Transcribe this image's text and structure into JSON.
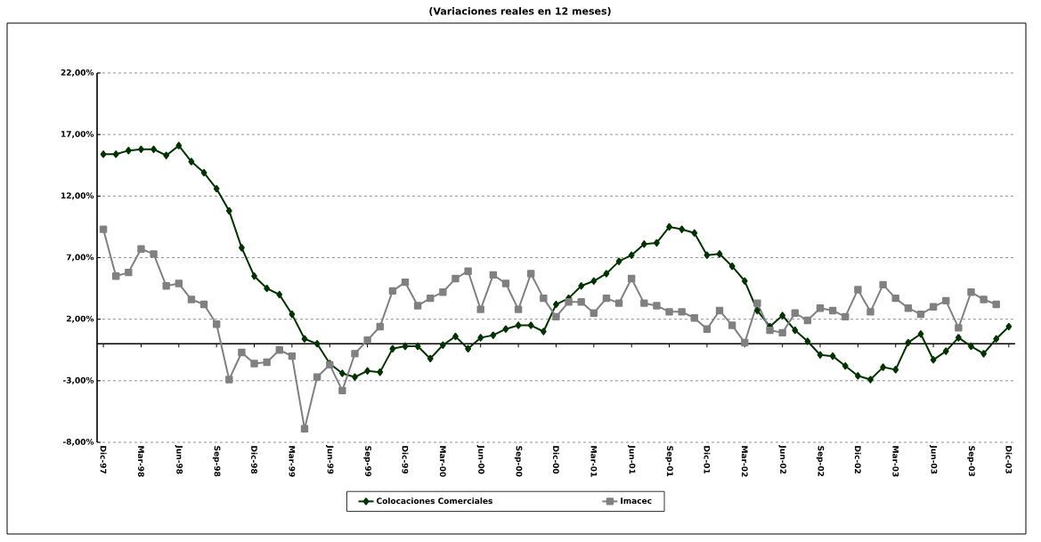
{
  "chart_data": {
    "type": "line",
    "title": "(Variaciones reales en 12 meses)",
    "categories": [
      "Dic-97",
      null,
      null,
      "Mar-98",
      null,
      null,
      "Jun-98",
      null,
      null,
      "Sep-98",
      null,
      null,
      "Dic-98",
      null,
      null,
      "Mar-99",
      null,
      null,
      "Jun-99",
      null,
      null,
      "Sep-99",
      null,
      null,
      "Dic-99",
      null,
      null,
      "Mar-00",
      null,
      null,
      "Jun-00",
      null,
      null,
      "Sep-00",
      null,
      null,
      "Dic-00",
      null,
      null,
      "Mar-01",
      null,
      null,
      "Jun-01",
      null,
      null,
      "Sep-01",
      null,
      null,
      "Dic-01",
      null,
      null,
      "Mar-02",
      null,
      null,
      "Jun-02",
      null,
      null,
      "Sep-02",
      null,
      null,
      "Dic-02",
      null,
      null,
      "Mar-03",
      null,
      null,
      "Jun-03",
      null,
      null,
      "Sep-03",
      null,
      null,
      "Dic-03"
    ],
    "series": [
      {
        "name": "Colocaciones Comerciales",
        "color": "#003300",
        "marker": "diamond",
        "values": [
          15.4,
          15.4,
          15.7,
          15.8,
          15.8,
          15.3,
          16.1,
          14.8,
          13.9,
          12.6,
          10.8,
          7.8,
          5.5,
          4.5,
          4.0,
          2.4,
          0.4,
          0.0,
          -1.6,
          -2.4,
          -2.7,
          -2.2,
          -2.3,
          -0.4,
          -0.2,
          -0.2,
          -1.2,
          -0.1,
          0.6,
          -0.4,
          0.5,
          0.7,
          1.2,
          1.5,
          1.5,
          1.0,
          3.2,
          3.7,
          4.7,
          5.1,
          5.7,
          6.7,
          7.2,
          8.1,
          8.2,
          9.5,
          9.3,
          9.0,
          7.2,
          7.3,
          6.3,
          5.1,
          2.7,
          1.4,
          2.3,
          1.1,
          0.2,
          -0.9,
          -1.0,
          -1.8,
          -2.6,
          -2.9,
          -1.9,
          -2.1,
          0.1,
          0.8,
          -1.3,
          -0.6,
          0.5,
          -0.2,
          -0.8,
          0.4,
          1.4
        ]
      },
      {
        "name": "Imacec",
        "color": "#808080",
        "marker": "square",
        "values": [
          9.3,
          5.5,
          5.8,
          7.7,
          7.3,
          4.7,
          4.9,
          3.6,
          3.2,
          1.6,
          -2.9,
          -0.7,
          -1.6,
          -1.5,
          -0.5,
          -1.0,
          -6.9,
          -2.7,
          -1.7,
          -3.8,
          -0.8,
          0.3,
          1.4,
          4.3,
          5.0,
          3.1,
          3.7,
          4.2,
          5.3,
          5.9,
          2.8,
          5.6,
          4.9,
          2.8,
          5.7,
          3.7,
          2.2,
          3.4,
          3.4,
          2.5,
          3.7,
          3.3,
          5.3,
          3.3,
          3.1,
          2.6,
          2.6,
          2.1,
          1.2,
          2.7,
          1.5,
          0.1,
          3.3,
          1.1,
          0.9,
          2.5,
          1.9,
          2.9,
          2.7,
          2.2,
          4.4,
          2.6,
          4.8,
          3.7,
          2.9,
          2.4,
          3.0,
          3.5,
          1.3,
          4.2,
          3.6,
          3.2,
          null
        ]
      }
    ],
    "ylim": [
      -8,
      22
    ],
    "yticks": [
      {
        "value": -8,
        "label": "-8,00%"
      },
      {
        "value": -3,
        "label": "-3,00%"
      },
      {
        "value": 2,
        "label": "2,00%"
      },
      {
        "value": 7,
        "label": "7,00%"
      },
      {
        "value": 12,
        "label": "12,00%"
      },
      {
        "value": 17,
        "label": "17,00%"
      },
      {
        "value": 22,
        "label": "22,00%"
      }
    ],
    "ref_lines": [
      {
        "axis": "y",
        "value": 0,
        "color": "#000000"
      }
    ],
    "grid": "y",
    "legend": "bottom"
  }
}
